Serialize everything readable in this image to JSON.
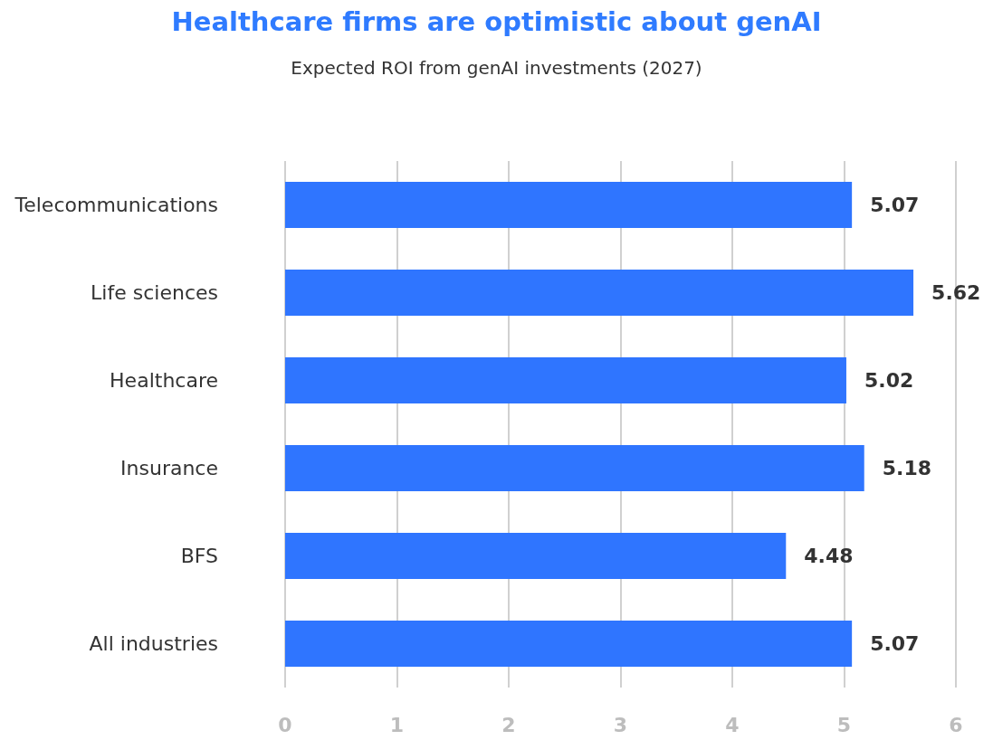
{
  "chart_data": {
    "type": "bar",
    "orientation": "horizontal",
    "title": "Healthcare firms are optimistic about genAI",
    "subtitle": "Expected ROI from genAI investments (2027)",
    "categories": [
      "Telecommunications",
      "Life sciences",
      "Healthcare",
      "Insurance",
      "BFS",
      "All industries"
    ],
    "values": [
      5.07,
      5.62,
      5.02,
      5.18,
      4.48,
      5.07
    ],
    "color": "#2f75ff",
    "xlim": [
      0,
      6
    ],
    "xticks": [
      0,
      1,
      2,
      3,
      4,
      5,
      6
    ],
    "grid": "x",
    "data_labels": true
  }
}
